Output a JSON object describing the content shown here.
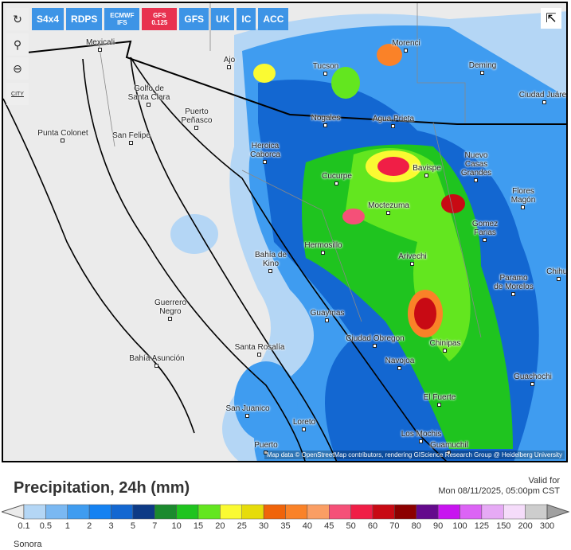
{
  "toolbar": {
    "models": [
      {
        "label": "S4x4"
      },
      {
        "label": "RDPS"
      },
      {
        "label": "ECMWF IFS",
        "small": true
      },
      {
        "label": "GFS 0.125",
        "small": true,
        "active": true
      },
      {
        "label": "GFS"
      },
      {
        "label": "UK"
      },
      {
        "label": "IC"
      },
      {
        "label": "ACC"
      }
    ],
    "side_icons": [
      "refresh-icon",
      "location-pin-icon",
      "zoom-out-icon",
      "city-toggle-icon"
    ],
    "city_toggle_label": "CITY"
  },
  "map": {
    "attribution": "Map data © OpenStreetMap contributors, rendering GIScience Research Group @ Heidelberg University",
    "cities": [
      [
        "Mexicali",
        122,
        44
      ],
      [
        "Ajo",
        284,
        66
      ],
      [
        "Tucson",
        405,
        74
      ],
      [
        "Morenci",
        506,
        45
      ],
      [
        "Deming",
        602,
        73
      ],
      [
        "Ciudad Juárez",
        680,
        110
      ],
      [
        "Golfo de",
        183,
        102
      ],
      [
        "Santa Clara",
        183,
        113
      ],
      [
        "Puerto",
        243,
        131
      ],
      [
        "Peñasco",
        243,
        142
      ],
      [
        "Nogales",
        405,
        139
      ],
      [
        "Agua Prieta",
        490,
        140
      ],
      [
        "Punta Colonet",
        75,
        158
      ],
      [
        "San Felipe",
        161,
        161
      ],
      [
        "Heroica",
        329,
        174
      ],
      [
        "Caborca",
        329,
        185
      ],
      [
        "Nuevo",
        594,
        186
      ],
      [
        "Casas",
        594,
        197
      ],
      [
        "Grandes",
        594,
        208
      ],
      [
        "Cucurpe",
        419,
        212
      ],
      [
        "Bavispe",
        532,
        202
      ],
      [
        "Flores",
        653,
        231
      ],
      [
        "Magón",
        653,
        242
      ],
      [
        "Moctezuma",
        484,
        249
      ],
      [
        "Gomez",
        605,
        272
      ],
      [
        "Farias",
        605,
        283
      ],
      [
        "Hermosillo",
        402,
        299
      ],
      [
        "Bahía de",
        336,
        311
      ],
      [
        "Kino",
        336,
        322
      ],
      [
        "Arivechi",
        514,
        313
      ],
      [
        "Chihua",
        698,
        332
      ],
      [
        "Paramo",
        641,
        340
      ],
      [
        "de Morelos",
        641,
        351
      ],
      [
        "Guerrero",
        210,
        371
      ],
      [
        "Negro",
        210,
        382
      ],
      [
        "Guaymas",
        407,
        384
      ],
      [
        "Ciudad Obregon",
        467,
        416
      ],
      [
        "Chinipas",
        555,
        422
      ],
      [
        "Santa Rosalía",
        322,
        427
      ],
      [
        "Bahía Asunción",
        193,
        441
      ],
      [
        "Navojoa",
        498,
        444
      ],
      [
        "Guachochi",
        665,
        464
      ],
      [
        "El Fuerte",
        548,
        490
      ],
      [
        "San Juanico",
        307,
        504
      ],
      [
        "Loreto",
        378,
        521
      ],
      [
        "Los Mochis",
        525,
        536
      ],
      [
        "Guamuchil",
        560,
        560
      ],
      [
        "Puerto",
        330,
        562
      ]
    ]
  },
  "legend": {
    "title": "Precipitation, 24h (mm)",
    "valid_label": "Valid for",
    "valid_time": "Mon 08/11/2025, 05:00pm CST",
    "region": "Sonora",
    "ticks": [
      "0.1",
      "0.5",
      "1",
      "2",
      "3",
      "5",
      "7",
      "10",
      "15",
      "20",
      "25",
      "30",
      "35",
      "40",
      "45",
      "50",
      "60",
      "70",
      "80",
      "90",
      "100",
      "125",
      "150",
      "200",
      "300"
    ],
    "colors": [
      "#b4d6f5",
      "#7ab8f2",
      "#3f9cf0",
      "#1582f2",
      "#1367d1",
      "#0d3a86",
      "#1b8a2e",
      "#1fc41f",
      "#63e61f",
      "#fafa32",
      "#e6dc0a",
      "#f0640a",
      "#fa8228",
      "#fa9e64",
      "#f55078",
      "#f01e46",
      "#c80a14",
      "#8c0000",
      "#640a8c",
      "#c814f0",
      "#dc64f5",
      "#e6aaf5",
      "#f5dcfa",
      "#cdcdcd"
    ],
    "left_color": "#ebebeb",
    "right_color": "#a0a0a0"
  }
}
